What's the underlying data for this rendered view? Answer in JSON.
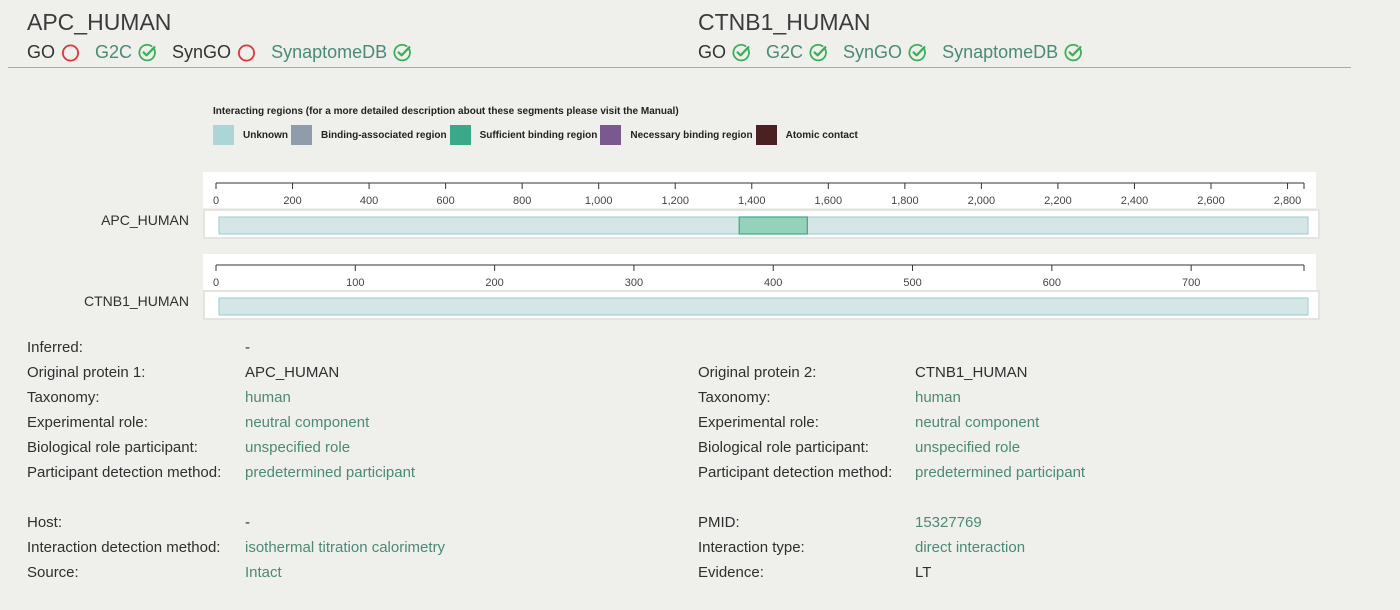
{
  "header": {
    "left": {
      "title": "APC_HUMAN",
      "databases": [
        {
          "name": "GO",
          "status": "absent"
        },
        {
          "name": "G2C",
          "status": "present"
        },
        {
          "name": "SynGO",
          "status": "absent"
        },
        {
          "name": "SynaptomeDB",
          "status": "present"
        }
      ]
    },
    "right": {
      "title": "CTNB1_HUMAN",
      "databases": [
        {
          "name": "GO",
          "status": "present"
        },
        {
          "name": "G2C",
          "status": "present"
        },
        {
          "name": "SynGO",
          "status": "present"
        },
        {
          "name": "SynaptomeDB",
          "status": "present"
        }
      ]
    }
  },
  "colors": {
    "check": "#3cae59",
    "absent": "#d9363e",
    "link": "#4b8a76",
    "unknown": "#abd5d6",
    "binding_associated": "#8e9cab",
    "sufficient_binding": "#3aa98a",
    "necessary_binding": "#7a5a8e",
    "atomic_contact": "#4a2023",
    "track_fill": "#d4e7e6",
    "track_stroke": "#9ccbcc",
    "region_fill": "#94d2bc",
    "region_stroke": "#3aa98a"
  },
  "legend": {
    "title": "Interacting regions (for a more detailed description about these segments please visit the Manual)",
    "items": [
      {
        "label": "Unknown",
        "color": "#abd5d6"
      },
      {
        "label": "Binding-associated region",
        "color": "#8e9cab"
      },
      {
        "label": "Sufficient binding region",
        "color": "#3aa98a"
      },
      {
        "label": "Necessary binding region",
        "color": "#7a5a8e"
      },
      {
        "label": "Atomic contact",
        "color": "#4a2023"
      }
    ]
  },
  "tracks": [
    {
      "label": "APC_HUMAN",
      "axis_max": 2843,
      "ticks": [
        0,
        200,
        400,
        600,
        800,
        1000,
        1200,
        1400,
        1600,
        1800,
        2000,
        2200,
        2400,
        2600,
        2800
      ],
      "tick_labels": [
        "0",
        "200",
        "400",
        "600",
        "800",
        "1,000",
        "1,200",
        "1,400",
        "1,600",
        "1,800",
        "2,000",
        "2,200",
        "2,400",
        "2,600",
        "2,800"
      ],
      "regions": [
        {
          "type": "Sufficient binding region",
          "start": 1362,
          "end": 1540
        }
      ]
    },
    {
      "label": "CTNB1_HUMAN",
      "axis_max": 781,
      "ticks": [
        0,
        100,
        200,
        300,
        400,
        500,
        600,
        700
      ],
      "tick_labels": [
        "0",
        "100",
        "200",
        "300",
        "400",
        "500",
        "600",
        "700"
      ],
      "regions": []
    }
  ],
  "details": {
    "left": [
      {
        "key": "Inferred:",
        "value": "-",
        "link": false
      },
      {
        "key": "Original protein 1:",
        "value": "APC_HUMAN",
        "link": false
      },
      {
        "key": "Taxonomy:",
        "value": "human",
        "link": true
      },
      {
        "key": "Experimental role:",
        "value": "neutral component",
        "link": true
      },
      {
        "key": "Biological role participant:",
        "value": "unspecified role",
        "link": true
      },
      {
        "key": "Participant detection method:",
        "value": "predetermined participant",
        "link": true
      }
    ],
    "right": [
      {
        "key": "Original protein 2:",
        "value": "CTNB1_HUMAN",
        "link": false
      },
      {
        "key": "Taxonomy:",
        "value": "human",
        "link": true
      },
      {
        "key": "Experimental role:",
        "value": "neutral component",
        "link": true
      },
      {
        "key": "Biological role participant:",
        "value": "unspecified role",
        "link": true
      },
      {
        "key": "Participant detection method:",
        "value": "predetermined participant",
        "link": true
      }
    ],
    "left2": [
      {
        "key": "Host:",
        "value": "-",
        "link": false
      },
      {
        "key": "Interaction detection method:",
        "value": "isothermal titration calorimetry",
        "link": true
      },
      {
        "key": "Source:",
        "value": "Intact",
        "link": true
      }
    ],
    "right2": [
      {
        "key": "PMID:",
        "value": "15327769",
        "link": true
      },
      {
        "key": "Interaction type:",
        "value": "direct interaction",
        "link": true
      },
      {
        "key": "Evidence:",
        "value": "LT",
        "link": false
      }
    ]
  }
}
